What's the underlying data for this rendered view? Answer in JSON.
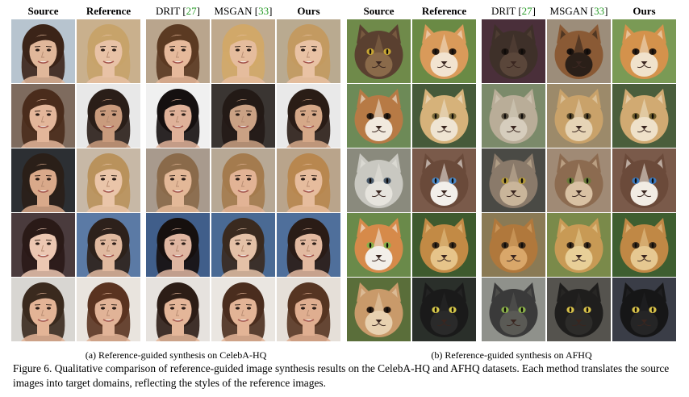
{
  "headers_left": {
    "source": "Source",
    "reference": "Reference",
    "drit": "DRIT",
    "drit_cite": "27",
    "msgan": "MSGAN",
    "msgan_cite": "33",
    "ours": "Ours"
  },
  "headers_right": {
    "source": "Source",
    "reference": "Reference",
    "drit": "DRIT",
    "drit_cite": "27",
    "msgan": "MSGAN",
    "msgan_cite": "33",
    "ours": "Ours"
  },
  "subcaption_left": "(a) Reference-guided synthesis on CelebA-HQ",
  "subcaption_right": "(b) Reference-guided synthesis on AFHQ",
  "figure_caption": "Figure 6. Qualitative comparison of reference-guided image synthesis results on the CelebA-HQ and AFHQ datasets. Each method translates the source images into target domains, reflecting the styles of the reference images.",
  "colors": {
    "citation": "#2a9d2a"
  },
  "celeba_rows": [
    {
      "src": {
        "bg": "#b7c4cf",
        "skin": "#e0b79a",
        "hair": "#3b2418"
      },
      "ref": {
        "bg": "#c9b08d",
        "skin": "#e8c2a6",
        "hair": "#c7a36a"
      },
      "drit": {
        "bg": "#b9a58d",
        "skin": "#e6b99b",
        "hair": "#5b3a22"
      },
      "msgan": {
        "bg": "#bfa98d",
        "skin": "#e5bc9d",
        "hair": "#d1a869"
      },
      "ours": {
        "bg": "#b9aa90",
        "skin": "#e9c2a4",
        "hair": "#c39a61"
      }
    },
    {
      "src": {
        "bg": "#7e6b5e",
        "skin": "#e3b69a",
        "hair": "#4a2c1c"
      },
      "ref": {
        "bg": "#e8e8e8",
        "skin": "#c99b7d",
        "hair": "#2a1e18"
      },
      "drit": {
        "bg": "#f0f0f0",
        "skin": "#dfb199",
        "hair": "#151010"
      },
      "msgan": {
        "bg": "#3a3532",
        "skin": "#caa184",
        "hair": "#231a16"
      },
      "ours": {
        "bg": "#e9e9e9",
        "skin": "#d5a888",
        "hair": "#2a1d16"
      }
    },
    {
      "src": {
        "bg": "#2c2f33",
        "skin": "#d9a98a",
        "hair": "#2a1f18"
      },
      "ref": {
        "bg": "#c7b8a6",
        "skin": "#eac5a9",
        "hair": "#b9925c"
      },
      "drit": {
        "bg": "#a89a8d",
        "skin": "#e3b898",
        "hair": "#8a6a4a"
      },
      "msgan": {
        "bg": "#b7a895",
        "skin": "#e2b395",
        "hair": "#a47b4e"
      },
      "ours": {
        "bg": "#b9a48b",
        "skin": "#e6bc9d",
        "hair": "#b8874f"
      }
    },
    {
      "src": {
        "bg": "#4a3b3d",
        "skin": "#ecc7b2",
        "hair": "#2a1a17"
      },
      "ref": {
        "bg": "#5b7aa5",
        "skin": "#e0b99f",
        "hair": "#2d211b"
      },
      "drit": {
        "bg": "#405e8a",
        "skin": "#dfb6a1",
        "hair": "#16100e"
      },
      "msgan": {
        "bg": "#4a6a94",
        "skin": "#e4c1a7",
        "hair": "#3a2a1f"
      },
      "ours": {
        "bg": "#4f6f9b",
        "skin": "#e2b9a0",
        "hair": "#2a1c16"
      }
    },
    {
      "src": {
        "bg": "#d8d6d2",
        "skin": "#e3b496",
        "hair": "#3a2a1e"
      },
      "ref": {
        "bg": "#e9e4de",
        "skin": "#e1b397",
        "hair": "#5a3320"
      },
      "drit": {
        "bg": "#e6e2de",
        "skin": "#e4b699",
        "hair": "#2c1d16"
      },
      "msgan": {
        "bg": "#eae6e1",
        "skin": "#e3b496",
        "hair": "#4a2d1e"
      },
      "ours": {
        "bg": "#e5dfd8",
        "skin": "#dfae90",
        "hair": "#563522"
      }
    }
  ],
  "afhq_rows": [
    {
      "src": {
        "bg": "#6f8a4a",
        "fur": "#5a4030",
        "face": "#8a6a4a",
        "eye": "#c7a634"
      },
      "ref": {
        "bg": "#6a8a45",
        "fur": "#d99a5a",
        "face": "#f2e3d0",
        "eye": "#2a1c12"
      },
      "drit": {
        "bg": "#4a2f3a",
        "fur": "#3e3029",
        "face": "#5a463a",
        "eye": "#1c1410"
      },
      "msgan": {
        "bg": "#9c8d7a",
        "fur": "#8a5a35",
        "face": "#2a1f18",
        "eye": "#1a120e"
      },
      "ours": {
        "bg": "#7a9a55",
        "fur": "#d4924c",
        "face": "#f0e2cc",
        "eye": "#2a1c12"
      }
    },
    {
      "src": {
        "bg": "#6d8a57",
        "fur": "#b77a45",
        "face": "#f1e9de",
        "eye": "#2a1c12"
      },
      "ref": {
        "bg": "#465a3a",
        "fur": "#d6b27a",
        "face": "#efe4d2",
        "eye": "#7a6a3a"
      },
      "drit": {
        "bg": "#7b8a6a",
        "fur": "#b9ad98",
        "face": "#d6cdbd",
        "eye": "#5a5040"
      },
      "msgan": {
        "bg": "#9c8a6a",
        "fur": "#c9a26a",
        "face": "#e6d4b6",
        "eye": "#5a4a2a"
      },
      "ours": {
        "bg": "#4a5e3c",
        "fur": "#d1aa72",
        "face": "#efe1c9",
        "eye": "#6a5a2a"
      }
    },
    {
      "src": {
        "bg": "#8a8a7d",
        "fur": "#c9c8c1",
        "face": "#e6e4dd",
        "eye": "#4a5a6a"
      },
      "ref": {
        "bg": "#7a5a4a",
        "fur": "#6a4a3a",
        "face": "#f2efea",
        "eye": "#4a8ac9"
      },
      "drit": {
        "bg": "#4a4a45",
        "fur": "#8a7a6a",
        "face": "#c9b59a",
        "eye": "#b39a3a"
      },
      "msgan": {
        "bg": "#a08a75",
        "fur": "#8c6b50",
        "face": "#d9c1a3",
        "eye": "#6a7a3a"
      },
      "ours": {
        "bg": "#7a5a4a",
        "fur": "#6b4a3a",
        "face": "#f2ece4",
        "eye": "#3a7ac0"
      }
    },
    {
      "src": {
        "bg": "#6a8a4a",
        "fur": "#d68a4a",
        "face": "#f3efe9",
        "eye": "#8ab04a"
      },
      "ref": {
        "bg": "#3e5a2e",
        "fur": "#c28a45",
        "face": "#e6c48a",
        "eye": "#3a2a1a"
      },
      "drit": {
        "bg": "#8a7a55",
        "fur": "#b0783c",
        "face": "#d9a76a",
        "eye": "#3a2a1a"
      },
      "msgan": {
        "bg": "#7a8a4a",
        "fur": "#c89a55",
        "face": "#e8cf98",
        "eye": "#3a2a1a"
      },
      "ours": {
        "bg": "#3e5e30",
        "fur": "#c08845",
        "face": "#e6c891",
        "eye": "#3a2a1a"
      }
    },
    {
      "src": {
        "bg": "#5a6e3a",
        "fur": "#c99a6a",
        "face": "#e8d1b0",
        "eye": "#2a1c12"
      },
      "ref": {
        "bg": "#2a2f2a",
        "fur": "#1a1a1a",
        "face": "#2a2a2a",
        "eye": "#d6c84a"
      },
      "drit": {
        "bg": "#8f918b",
        "fur": "#3a3a3a",
        "face": "#5a5a55",
        "eye": "#8ab04a"
      },
      "msgan": {
        "bg": "#55534e",
        "fur": "#1f1e1d",
        "face": "#2d2c2a",
        "eye": "#d8c24a"
      },
      "ours": {
        "bg": "#3a3d47",
        "fur": "#161617",
        "face": "#252526",
        "eye": "#d8c24a"
      }
    }
  ]
}
